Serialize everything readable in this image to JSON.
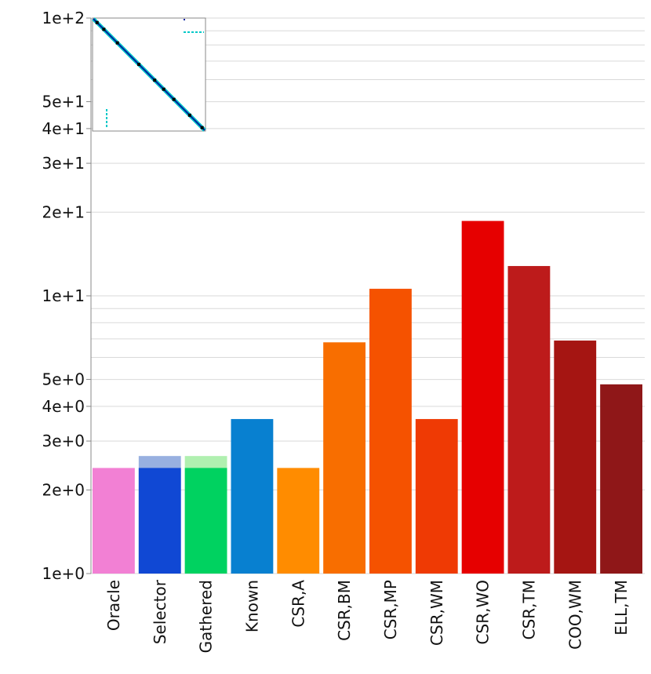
{
  "chart_data": {
    "type": "bar",
    "scale": "log",
    "ylim": [
      1,
      100
    ],
    "y_ticks": [
      {
        "value": 1,
        "label": "1e+0"
      },
      {
        "value": 2,
        "label": "2e+0"
      },
      {
        "value": 3,
        "label": "3e+0"
      },
      {
        "value": 4,
        "label": "4e+0"
      },
      {
        "value": 5,
        "label": "5e+0"
      },
      {
        "value": 10,
        "label": "1e+1"
      },
      {
        "value": 20,
        "label": "2e+1"
      },
      {
        "value": 30,
        "label": "3e+1"
      },
      {
        "value": 40,
        "label": "4e+1"
      },
      {
        "value": 50,
        "label": "5e+1"
      },
      {
        "value": 100,
        "label": "1e+2"
      }
    ],
    "minor_gridlines": [
      6,
      7,
      8,
      9,
      60,
      70,
      80,
      90
    ],
    "grid": true,
    "categories": [
      "Oracle",
      "Selector",
      "Gathered",
      "Known",
      "CSR,A",
      "CSR,BM",
      "CSR,MP",
      "CSR,WM",
      "CSR,WO",
      "CSR,TM",
      "COO,WM",
      "ELL,TM"
    ],
    "values": [
      2.4,
      2.4,
      2.4,
      3.6,
      2.4,
      6.8,
      10.6,
      3.6,
      18.6,
      12.8,
      6.9,
      4.8
    ],
    "overlay_values": [
      null,
      2.65,
      2.65,
      null,
      null,
      null,
      null,
      null,
      null,
      null,
      null,
      null
    ],
    "colors": [
      "#f280d4",
      "#1048d4",
      "#00d260",
      "#0880d0",
      "#ff8c00",
      "#f86e00",
      "#f55200",
      "#ef3a04",
      "#e60000",
      "#bd1b1b",
      "#a51512",
      "#8f1718"
    ],
    "overlay_colors": [
      null,
      "#98b0e0",
      "#b0f0b0",
      null,
      null,
      null,
      null,
      null,
      null,
      null,
      null,
      null
    ],
    "inset": {
      "type": "sparsity-pattern",
      "description_colors": [
        "#00c8c8",
        "#0020a0",
        "#000000"
      ]
    }
  }
}
